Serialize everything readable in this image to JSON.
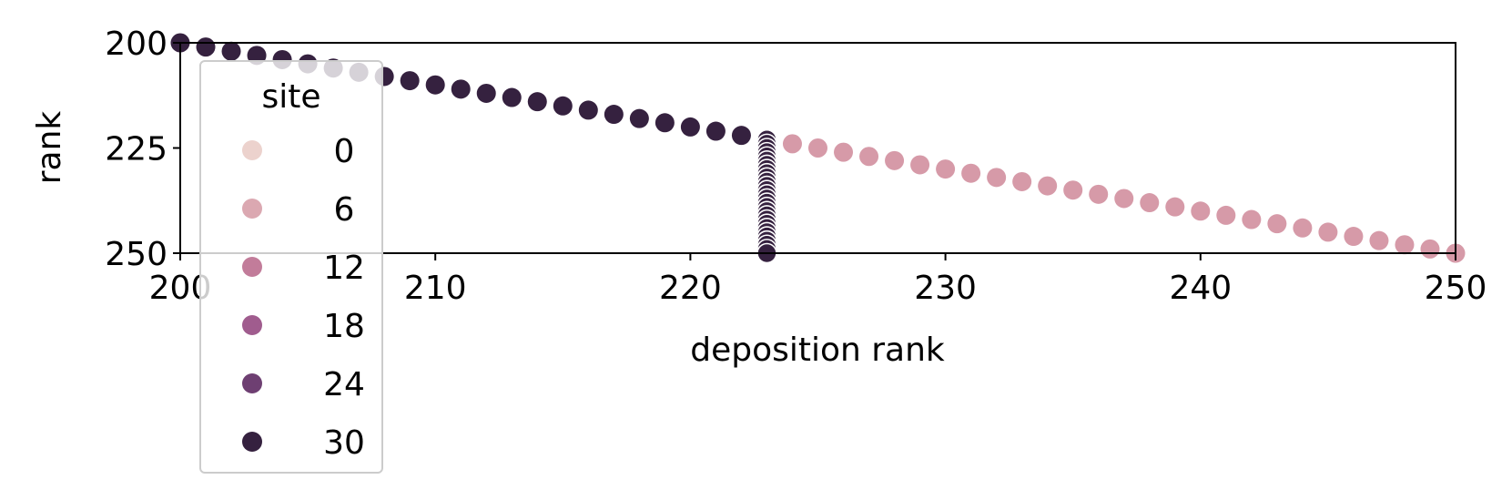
{
  "chart_data": {
    "type": "scatter",
    "title": "",
    "xlabel": "deposition rank",
    "ylabel": "rank",
    "xlim": [
      200,
      250
    ],
    "ylim": [
      250,
      200
    ],
    "y_inverted": true,
    "xticks": [
      "200",
      "210",
      "220",
      "230",
      "240",
      "250"
    ],
    "yticks": [
      "200",
      "225",
      "250"
    ],
    "grid": false,
    "legend": {
      "title": "site",
      "placement": "upper-left",
      "entries": [
        {
          "label": "0",
          "color": "#ecd2cd"
        },
        {
          "label": "6",
          "color": "#dba8b1"
        },
        {
          "label": "12",
          "color": "#c27c9a"
        },
        {
          "label": "18",
          "color": "#a05c8e"
        },
        {
          "label": "24",
          "color": "#6e3f72"
        },
        {
          "label": "30",
          "color": "#35213f"
        }
      ]
    },
    "series": [
      {
        "site": 30,
        "color": "#35213f",
        "x": [
          200,
          201,
          202,
          203,
          204,
          205,
          206,
          207,
          208,
          209,
          210,
          211,
          212,
          213,
          214,
          215,
          216,
          217,
          218,
          219,
          220,
          221,
          222
        ],
        "y": [
          200,
          201,
          202,
          203,
          204,
          205,
          206,
          207,
          208,
          209,
          210,
          211,
          212,
          213,
          214,
          215,
          216,
          217,
          218,
          219,
          220,
          221,
          222
        ]
      },
      {
        "site": 30,
        "color": "#35213f",
        "x": [
          223,
          223,
          223,
          223,
          223,
          223,
          223,
          223,
          223,
          223,
          223,
          223,
          223,
          223,
          223,
          223,
          223,
          223,
          223,
          223,
          223,
          223,
          223,
          223,
          223,
          223,
          223,
          223
        ],
        "y": [
          223,
          224,
          225,
          226,
          227,
          228,
          229,
          230,
          231,
          232,
          233,
          234,
          235,
          236,
          237,
          238,
          239,
          240,
          241,
          242,
          243,
          244,
          245,
          246,
          247,
          248,
          249,
          250
        ]
      },
      {
        "site": 6,
        "color": "#d69aa8",
        "x": [
          224,
          225,
          226,
          227,
          228,
          229,
          230,
          231,
          232,
          233,
          234,
          235,
          236,
          237,
          238,
          239,
          240,
          241,
          242,
          243,
          244,
          245,
          246,
          247,
          248,
          249,
          250
        ],
        "y": [
          224,
          225,
          226,
          227,
          228,
          229,
          230,
          231,
          232,
          233,
          234,
          235,
          236,
          237,
          238,
          239,
          240,
          241,
          242,
          243,
          244,
          245,
          246,
          247,
          248,
          249,
          250
        ]
      }
    ]
  }
}
